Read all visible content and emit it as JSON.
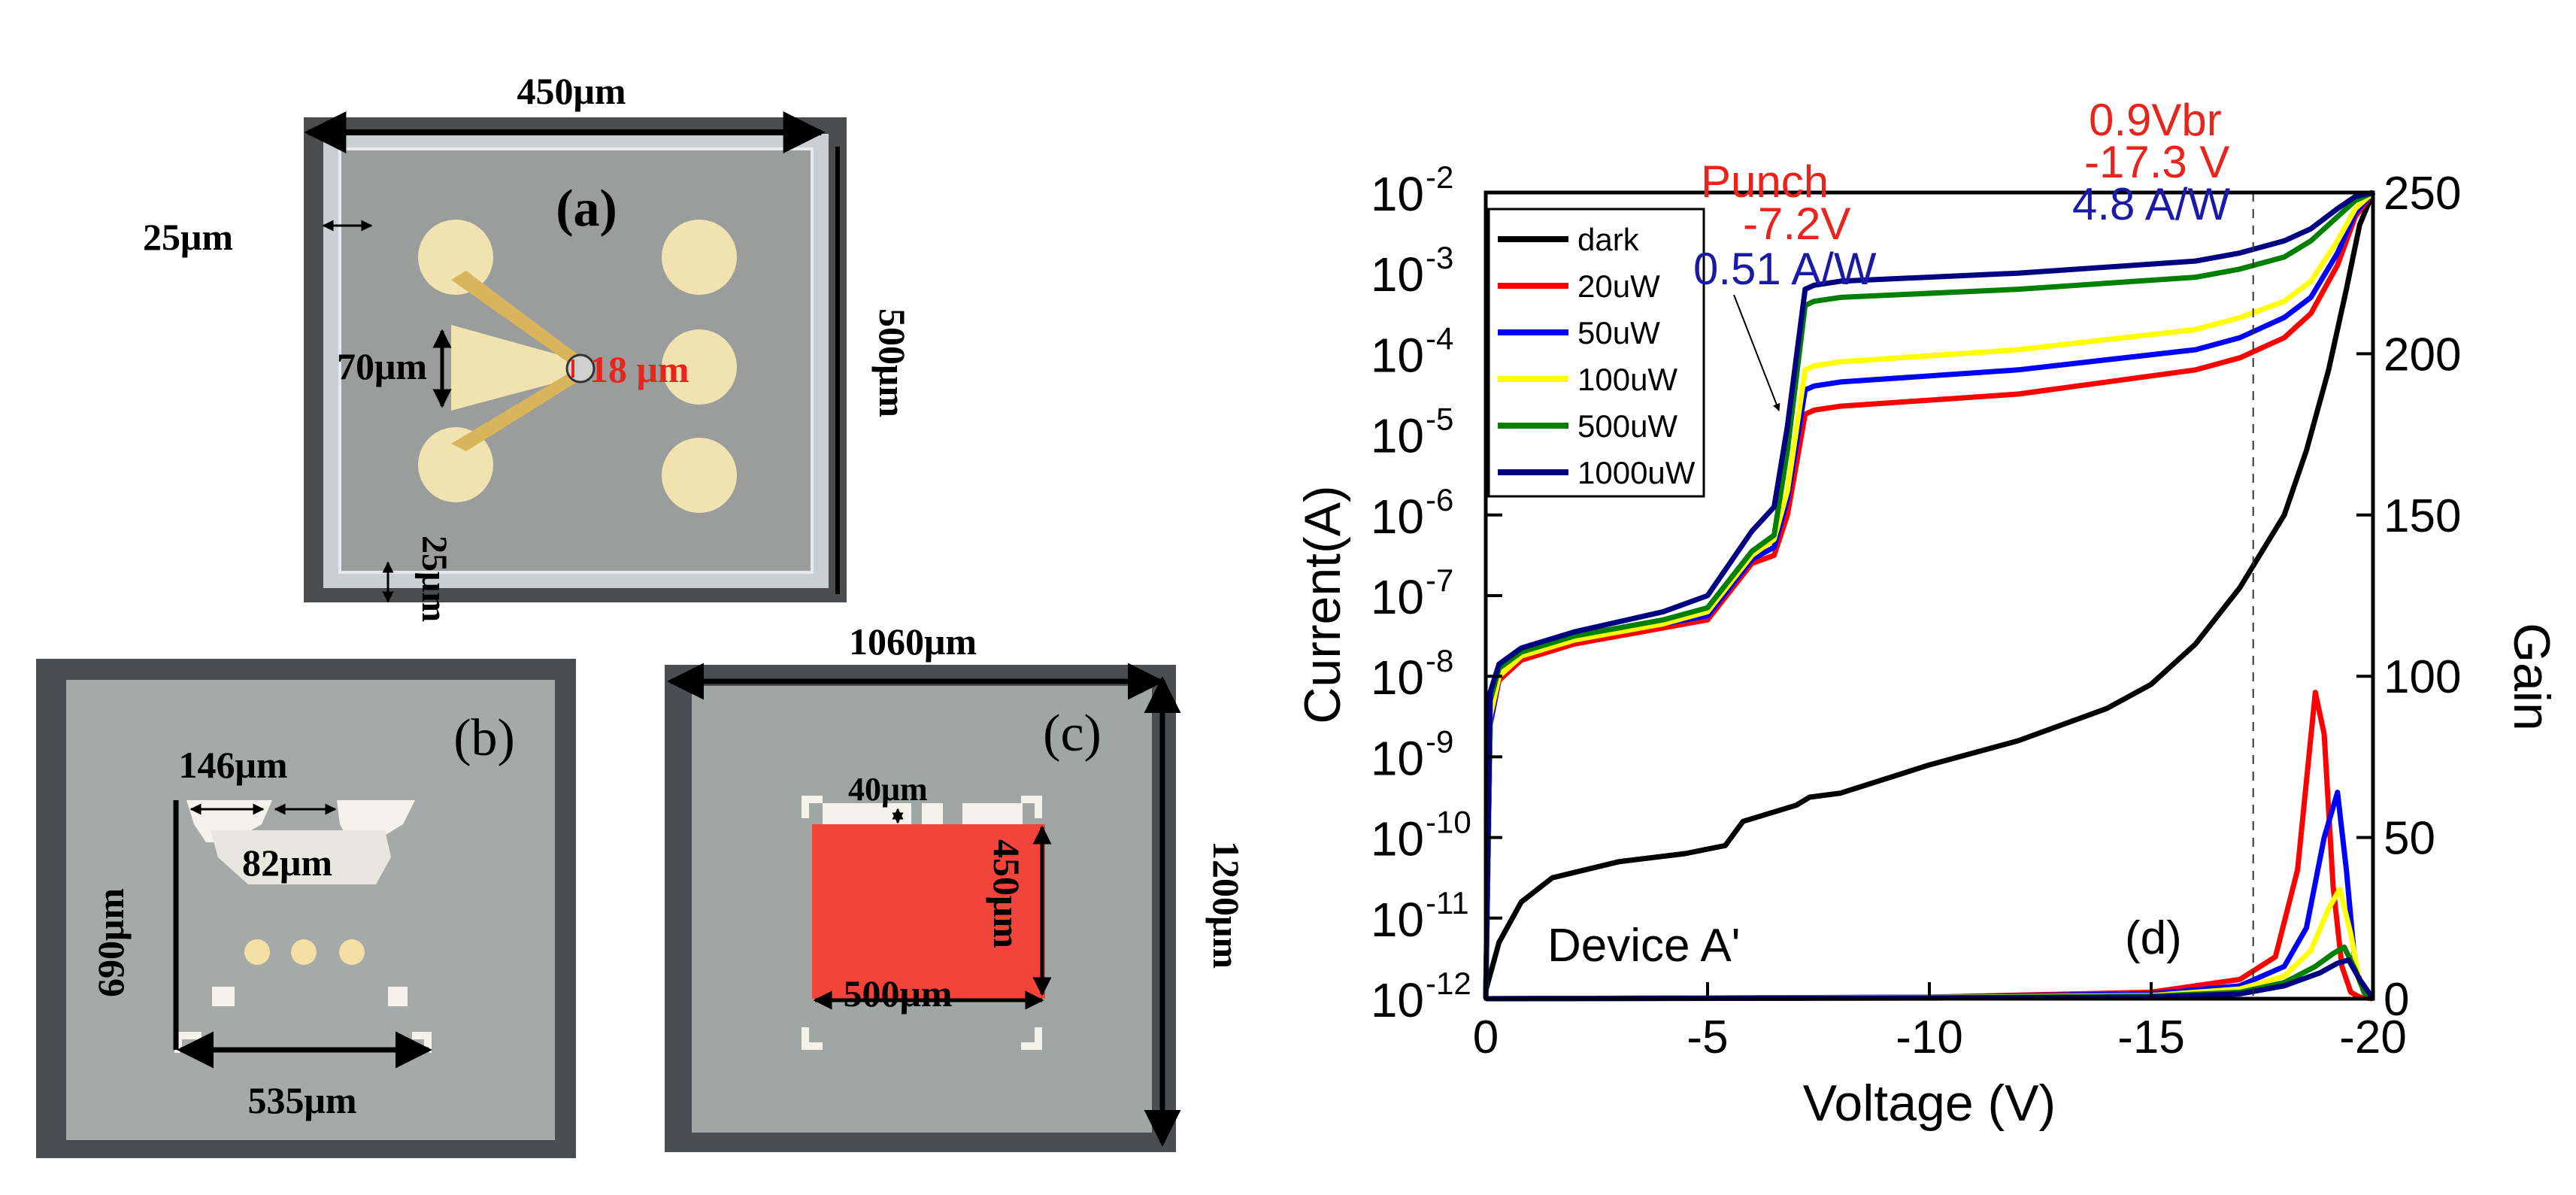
{
  "micrographs": {
    "a": {
      "panel_label": "(a)",
      "width_label": "450μm",
      "height_label": "500μm",
      "border_left_label": "25μm",
      "border_bottom_label": "25μm",
      "pad_label": "70μm",
      "gap_label": "18 μm",
      "gap_color": "#e8241c"
    },
    "b": {
      "panel_label": "(b)",
      "top_label": "146μm",
      "mid_label": "82μm",
      "height_label": "690μm",
      "width_label": "535μm"
    },
    "c": {
      "panel_label": "(c)",
      "width_label": "1060μm",
      "height_label": "1200μm",
      "gap_label": "40μm",
      "active_height_label": "450μm",
      "active_width_label": "500μm",
      "active_color": "#f2443a"
    }
  },
  "chart_data": {
    "type": "line",
    "panel_label": "(d)",
    "device_label": "Device A'",
    "xlabel": "Voltage (V)",
    "ylabel": "Current(A)",
    "y2label": "Gain",
    "xlim": [
      0,
      -20
    ],
    "x_ticks": [
      "0",
      "-5",
      "-10",
      "-15",
      "-20"
    ],
    "ylim_log": [
      -12,
      -2
    ],
    "y_tick_bases": [
      "10",
      "10",
      "10",
      "10",
      "10",
      "10",
      "10",
      "10",
      "10",
      "10",
      "10"
    ],
    "y_tick_exps": [
      "-2",
      "-3",
      "-4",
      "-5",
      "-6",
      "-7",
      "-8",
      "-9",
      "-10",
      "-11",
      "-12"
    ],
    "y2lim": [
      0,
      250
    ],
    "y2_ticks": [
      "250",
      "200",
      "150",
      "100",
      "50",
      "0"
    ],
    "vline_x": -17.3,
    "annotations": {
      "punch_label": "Punch",
      "punch_voltage": "-7.2V",
      "responsivity_low": "0.51 A/W",
      "vbr_label": "0.9Vbr",
      "vbr_voltage": "-17.3 V",
      "responsivity_high": "4.8 A/W"
    },
    "series": [
      {
        "name": "dark",
        "color": "#000000",
        "x": [
          0,
          -0.3,
          -0.8,
          -1.5,
          -3,
          -4.5,
          -5.4,
          -5.8,
          -7,
          -7.3,
          -8,
          -10,
          -12,
          -14,
          -15,
          -16,
          -17,
          -18,
          -18.5,
          -19,
          -19.4,
          -19.7,
          -20
        ],
        "log_y": [
          -11.9,
          -11.3,
          -10.8,
          -10.5,
          -10.3,
          -10.2,
          -10.1,
          -9.8,
          -9.6,
          -9.5,
          -9.45,
          -9.1,
          -8.8,
          -8.4,
          -8.1,
          -7.6,
          -6.9,
          -6.0,
          -5.2,
          -4.2,
          -3.2,
          -2.4,
          -2.0
        ]
      },
      {
        "name": "20uW",
        "color": "#ff0000",
        "x": [
          0,
          -0.1,
          -0.3,
          -0.8,
          -2,
          -4,
          -5,
          -6,
          -6.5,
          -6.8,
          -7.2,
          -7.4,
          -8,
          -12,
          -16,
          -17,
          -18,
          -18.6,
          -19.2,
          -19.6,
          -20
        ],
        "log_y": [
          -12.0,
          -8.6,
          -8.05,
          -7.8,
          -7.6,
          -7.4,
          -7.3,
          -6.6,
          -6.5,
          -6.0,
          -4.75,
          -4.7,
          -4.65,
          -4.5,
          -4.2,
          -4.05,
          -3.8,
          -3.5,
          -2.9,
          -2.3,
          -2.0
        ]
      },
      {
        "name": "50uW",
        "color": "#0000ff",
        "x": [
          0,
          -0.1,
          -0.3,
          -0.8,
          -2,
          -4,
          -5,
          -6,
          -6.5,
          -6.8,
          -7.2,
          -7.4,
          -8,
          -12,
          -16,
          -17,
          -18,
          -18.6,
          -19.2,
          -19.6,
          -20
        ],
        "log_y": [
          -12.0,
          -8.6,
          -8.0,
          -7.75,
          -7.55,
          -7.35,
          -7.25,
          -6.55,
          -6.4,
          -5.8,
          -4.45,
          -4.4,
          -4.35,
          -4.2,
          -3.95,
          -3.8,
          -3.55,
          -3.3,
          -2.75,
          -2.25,
          -2.0
        ]
      },
      {
        "name": "100uW",
        "color": "#ffff00",
        "x": [
          0,
          -0.1,
          -0.3,
          -0.8,
          -2,
          -4,
          -5,
          -6,
          -6.5,
          -6.8,
          -7.2,
          -7.4,
          -8,
          -12,
          -16,
          -17,
          -18,
          -18.6,
          -19.2,
          -19.6,
          -20
        ],
        "log_y": [
          -12.0,
          -8.5,
          -8.0,
          -7.75,
          -7.55,
          -7.35,
          -7.2,
          -6.5,
          -6.3,
          -5.7,
          -4.2,
          -4.15,
          -4.1,
          -3.95,
          -3.7,
          -3.55,
          -3.35,
          -3.1,
          -2.6,
          -2.2,
          -2.0
        ]
      },
      {
        "name": "500uW",
        "color": "#008000",
        "x": [
          0,
          -0.1,
          -0.3,
          -0.8,
          -2,
          -4,
          -5,
          -6,
          -6.5,
          -6.8,
          -7.2,
          -7.4,
          -8,
          -12,
          -16,
          -17,
          -18,
          -18.6,
          -19.2,
          -19.6,
          -20
        ],
        "log_y": [
          -12.0,
          -8.3,
          -7.9,
          -7.7,
          -7.5,
          -7.3,
          -7.15,
          -6.45,
          -6.25,
          -5.2,
          -3.4,
          -3.35,
          -3.3,
          -3.2,
          -3.05,
          -2.95,
          -2.8,
          -2.6,
          -2.3,
          -2.1,
          -2.0
        ]
      },
      {
        "name": "1000uW",
        "color": "#000080",
        "x": [
          0,
          -0.1,
          -0.3,
          -0.8,
          -2,
          -4,
          -5,
          -6,
          -6.5,
          -6.8,
          -7.2,
          -7.4,
          -8,
          -12,
          -16,
          -17,
          -18,
          -18.6,
          -19.2,
          -19.6,
          -20
        ],
        "log_y": [
          -12.0,
          -8.2,
          -7.85,
          -7.65,
          -7.45,
          -7.2,
          -7.0,
          -6.2,
          -5.9,
          -4.9,
          -3.2,
          -3.15,
          -3.1,
          -3.0,
          -2.85,
          -2.75,
          -2.6,
          -2.45,
          -2.2,
          -2.05,
          -2.0
        ]
      }
    ],
    "gain_series": [
      {
        "name": "20uW",
        "color": "#ff0000",
        "x": [
          0,
          -10,
          -15,
          -17,
          -17.8,
          -18.3,
          -18.7,
          -18.9,
          -19.1,
          -19.3,
          -19.5,
          -19.7,
          -20
        ],
        "gain": [
          0,
          0.5,
          2,
          6,
          13,
          40,
          95,
          82,
          35,
          10,
          2,
          0.5,
          0
        ]
      },
      {
        "name": "50uW",
        "color": "#0000ff",
        "x": [
          0,
          -10,
          -15,
          -17,
          -18,
          -18.5,
          -18.9,
          -19.2,
          -19.4,
          -19.6,
          -19.8,
          -20
        ],
        "gain": [
          0,
          0.5,
          1.5,
          4,
          10,
          22,
          50,
          64,
          40,
          10,
          2,
          0
        ]
      },
      {
        "name": "100uW",
        "color": "#ffff00",
        "x": [
          0,
          -10,
          -15,
          -17,
          -18,
          -18.6,
          -19.0,
          -19.25,
          -19.5,
          -19.7,
          -20
        ],
        "gain": [
          0,
          0.4,
          1,
          3,
          7,
          15,
          28,
          34,
          20,
          5,
          0
        ]
      },
      {
        "name": "500uW",
        "color": "#008000",
        "x": [
          0,
          -10,
          -15,
          -17,
          -18,
          -18.7,
          -19.1,
          -19.35,
          -19.6,
          -19.8,
          -20
        ],
        "gain": [
          0,
          0.3,
          0.8,
          2,
          5,
          10,
          14,
          16,
          9,
          2,
          0
        ]
      },
      {
        "name": "1000uW",
        "color": "#000080",
        "x": [
          0,
          -10,
          -15,
          -17,
          -18,
          -18.8,
          -19.2,
          -19.45,
          -19.7,
          -20
        ],
        "gain": [
          0,
          0.2,
          0.5,
          1.5,
          4,
          8,
          11,
          12,
          6,
          0
        ]
      }
    ]
  }
}
